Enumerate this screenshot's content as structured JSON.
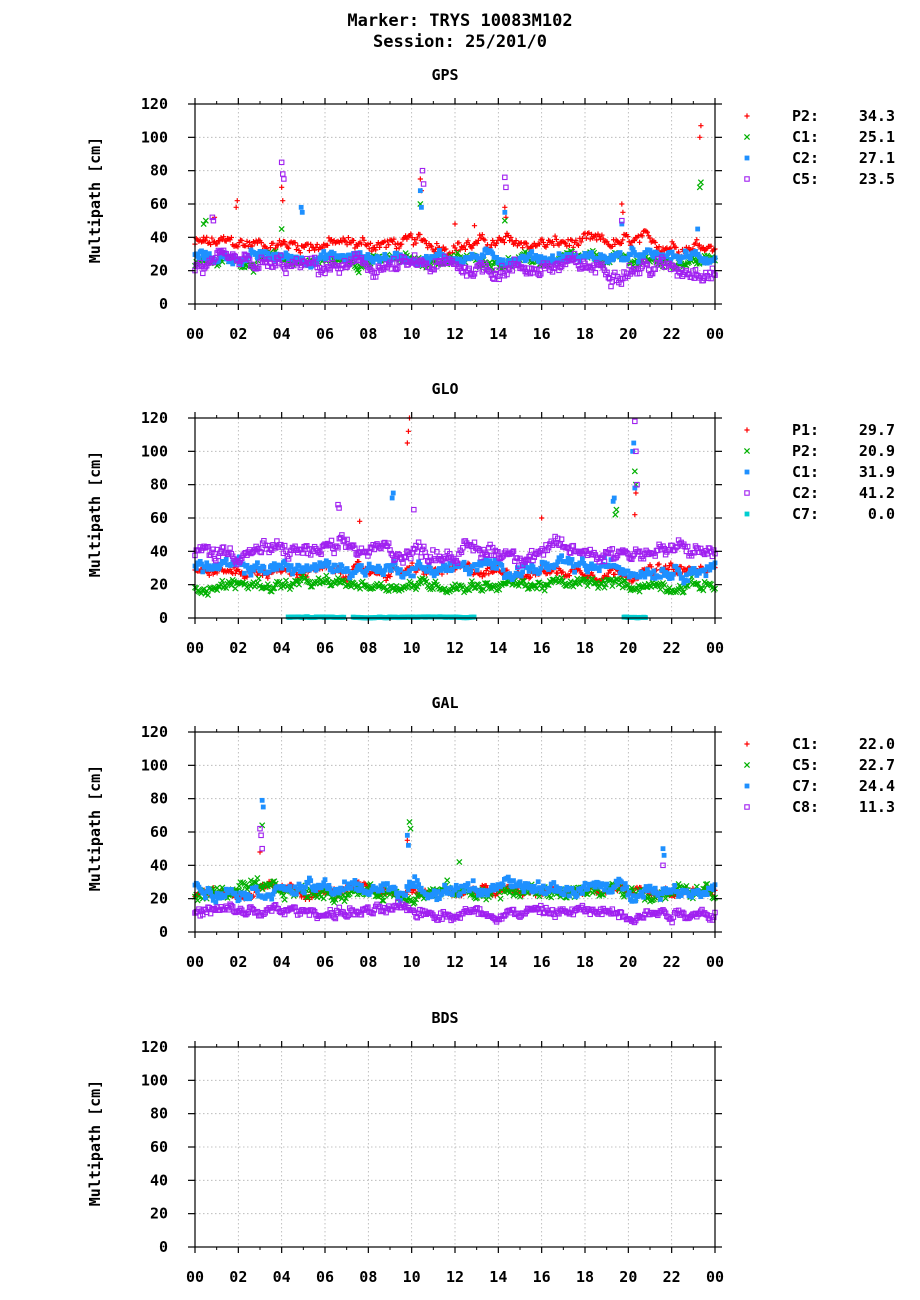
{
  "figure": {
    "title_line1": "Marker: TRYS 10083M102",
    "title_line2": "Session: 25/201/0"
  },
  "chart_data": [
    {
      "type": "scatter",
      "title": "GPS",
      "ylabel": "Multipath [cm]",
      "xlabel": "",
      "xlim": [
        0,
        24
      ],
      "ylim": [
        0,
        120
      ],
      "x_ticks": [
        "00",
        "02",
        "04",
        "06",
        "08",
        "10",
        "12",
        "14",
        "16",
        "18",
        "20",
        "22",
        "00"
      ],
      "y_ticks": [
        "0",
        "20",
        "40",
        "60",
        "80",
        "100",
        "120"
      ],
      "grid": true,
      "legend_position": "right",
      "series": [
        {
          "name": "P2",
          "value": "34.3",
          "color": "#ff0000",
          "marker": "plus",
          "base": 36,
          "noise": 5,
          "min": 26,
          "max": 46,
          "spikes": [
            [
              0.4,
              40
            ],
            [
              0.9,
              52
            ],
            [
              1.9,
              58
            ],
            [
              1.95,
              62
            ],
            [
              4.0,
              70
            ],
            [
              4.05,
              62
            ],
            [
              10.4,
              75
            ],
            [
              10.45,
              68
            ],
            [
              12.0,
              48
            ],
            [
              12.9,
              47
            ],
            [
              14.3,
              58
            ],
            [
              14.35,
              52
            ],
            [
              19.7,
              60
            ],
            [
              19.75,
              55
            ],
            [
              23.3,
              100
            ],
            [
              23.35,
              107
            ]
          ]
        },
        {
          "name": "C1",
          "value": "25.1",
          "color": "#00b000",
          "marker": "cross",
          "base": 26,
          "noise": 4,
          "min": 18,
          "max": 34,
          "spikes": [
            [
              0.4,
              48
            ],
            [
              0.5,
              50
            ],
            [
              4.0,
              45
            ],
            [
              10.4,
              60
            ],
            [
              14.3,
              50
            ],
            [
              23.3,
              70
            ],
            [
              23.35,
              73
            ]
          ]
        },
        {
          "name": "C2",
          "value": "27.1",
          "color": "#1e90ff",
          "marker": "square",
          "base": 28,
          "noise": 4,
          "min": 20,
          "max": 36,
          "spikes": [
            [
              4.9,
              58
            ],
            [
              4.95,
              55
            ],
            [
              10.4,
              68
            ],
            [
              10.45,
              58
            ],
            [
              14.3,
              55
            ],
            [
              19.7,
              48
            ],
            [
              23.2,
              45
            ]
          ]
        },
        {
          "name": "C5",
          "value": "23.5",
          "color": "#a020f0",
          "marker": "osquare",
          "base": 22,
          "noise": 6,
          "min": 10,
          "max": 34,
          "spikes": [
            [
              0.8,
              52
            ],
            [
              0.85,
              50
            ],
            [
              4.0,
              85
            ],
            [
              4.05,
              78
            ],
            [
              4.1,
              75
            ],
            [
              10.5,
              80
            ],
            [
              10.55,
              72
            ],
            [
              14.3,
              76
            ],
            [
              14.35,
              70
            ],
            [
              19.7,
              50
            ]
          ]
        }
      ]
    },
    {
      "type": "scatter",
      "title": "GLO",
      "ylabel": "Multipath [cm]",
      "xlabel": "",
      "xlim": [
        0,
        24
      ],
      "ylim": [
        0,
        120
      ],
      "x_ticks": [
        "00",
        "02",
        "04",
        "06",
        "08",
        "10",
        "12",
        "14",
        "16",
        "18",
        "20",
        "22",
        "00"
      ],
      "y_ticks": [
        "0",
        "20",
        "40",
        "60",
        "80",
        "100",
        "120"
      ],
      "grid": true,
      "legend_position": "right",
      "series": [
        {
          "name": "P1",
          "value": "29.7",
          "color": "#ff0000",
          "marker": "plus",
          "base": 28,
          "noise": 4,
          "min": 20,
          "max": 38,
          "spikes": [
            [
              7.6,
              58
            ],
            [
              9.8,
              105
            ],
            [
              9.85,
              112
            ],
            [
              9.9,
              120
            ],
            [
              16.0,
              60
            ],
            [
              20.3,
              62
            ],
            [
              20.35,
              75
            ]
          ]
        },
        {
          "name": "P2",
          "value": "20.9",
          "color": "#00b000",
          "marker": "cross",
          "base": 20,
          "noise": 4,
          "min": 8,
          "max": 28,
          "spikes": [
            [
              19.4,
              62
            ],
            [
              19.45,
              65
            ],
            [
              20.3,
              88
            ],
            [
              20.35,
              80
            ]
          ]
        },
        {
          "name": "C1",
          "value": "31.9",
          "color": "#1e90ff",
          "marker": "square",
          "base": 30,
          "noise": 5,
          "min": 20,
          "max": 40,
          "spikes": [
            [
              9.1,
              72
            ],
            [
              9.15,
              75
            ],
            [
              19.3,
              70
            ],
            [
              19.35,
              72
            ],
            [
              20.2,
              100
            ],
            [
              20.25,
              105
            ],
            [
              20.3,
              78
            ]
          ]
        },
        {
          "name": "C2",
          "value": "41.2",
          "color": "#a020f0",
          "marker": "osquare",
          "base": 40,
          "noise": 6,
          "min": 26,
          "max": 62,
          "spikes": [
            [
              6.6,
              68
            ],
            [
              6.65,
              66
            ],
            [
              10.1,
              65
            ],
            [
              20.3,
              118
            ],
            [
              20.35,
              100
            ],
            [
              20.4,
              80
            ]
          ]
        },
        {
          "name": "C7",
          "value": "0.0",
          "color": "#00ced1",
          "marker": "square",
          "base": 0.5,
          "noise": 0.3,
          "min": 0,
          "max": 1,
          "segments": [
            [
              4.3,
              6.9
            ],
            [
              7.3,
              12.9
            ],
            [
              19.8,
              20.8
            ]
          ]
        }
      ]
    },
    {
      "type": "scatter",
      "title": "GAL",
      "ylabel": "Multipath [cm]",
      "xlabel": "",
      "xlim": [
        0,
        24
      ],
      "ylim": [
        0,
        120
      ],
      "x_ticks": [
        "00",
        "02",
        "04",
        "06",
        "08",
        "10",
        "12",
        "14",
        "16",
        "18",
        "20",
        "22",
        "00"
      ],
      "y_ticks": [
        "0",
        "20",
        "40",
        "60",
        "80",
        "100",
        "120"
      ],
      "grid": true,
      "legend_position": "right",
      "series": [
        {
          "name": "C1",
          "value": "22.0",
          "color": "#ff0000",
          "marker": "plus",
          "base": 24,
          "noise": 4,
          "min": 14,
          "max": 34,
          "spikes": [
            [
              3.0,
              48
            ],
            [
              9.8,
              55
            ]
          ]
        },
        {
          "name": "C5",
          "value": "22.7",
          "color": "#00b000",
          "marker": "cross",
          "base": 24,
          "noise": 5,
          "min": 14,
          "max": 42,
          "spikes": [
            [
              3.1,
              64
            ],
            [
              9.9,
              66
            ],
            [
              9.95,
              62
            ],
            [
              12.2,
              42
            ]
          ]
        },
        {
          "name": "C7",
          "value": "24.4",
          "color": "#1e90ff",
          "marker": "square",
          "base": 26,
          "noise": 5,
          "min": 16,
          "max": 44,
          "spikes": [
            [
              3.1,
              79
            ],
            [
              3.15,
              75
            ],
            [
              9.8,
              58
            ],
            [
              9.85,
              52
            ],
            [
              21.6,
              50
            ],
            [
              21.65,
              46
            ]
          ]
        },
        {
          "name": "C8",
          "value": "11.3",
          "color": "#a020f0",
          "marker": "osquare",
          "base": 12,
          "noise": 4,
          "min": 2,
          "max": 24,
          "spikes": [
            [
              3.0,
              62
            ],
            [
              3.05,
              58
            ],
            [
              3.1,
              50
            ],
            [
              21.6,
              40
            ]
          ]
        }
      ]
    },
    {
      "type": "scatter",
      "title": "BDS",
      "ylabel": "Multipath [cm]",
      "xlabel": "",
      "xlim": [
        0,
        24
      ],
      "ylim": [
        0,
        120
      ],
      "x_ticks": [
        "00",
        "02",
        "04",
        "06",
        "08",
        "10",
        "12",
        "14",
        "16",
        "18",
        "20",
        "22",
        "00"
      ],
      "y_ticks": [
        "0",
        "20",
        "40",
        "60",
        "80",
        "100",
        "120"
      ],
      "grid": true,
      "legend_position": "right",
      "series": []
    }
  ]
}
